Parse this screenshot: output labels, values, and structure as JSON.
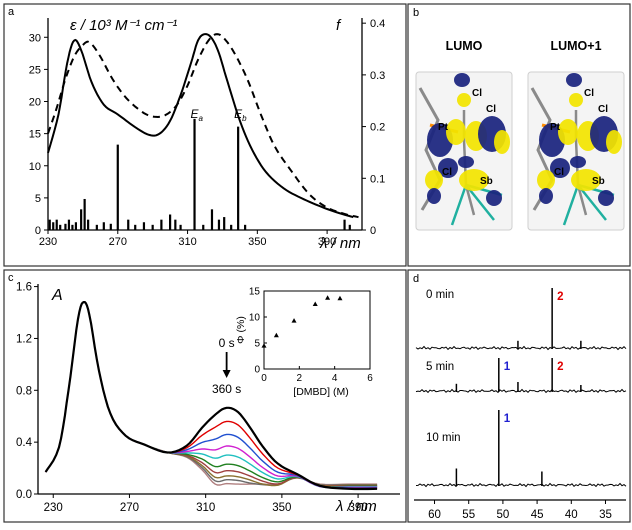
{
  "chart_data": [
    {
      "panel": "a",
      "type": "line",
      "ylabel": "ε / 10³ M⁻¹ cm⁻¹",
      "y2label": "f",
      "xlabel": "λ / nm",
      "xticks": [
        230,
        270,
        310,
        350,
        390
      ],
      "yticks": [
        0,
        5,
        10,
        15,
        20,
        25,
        30
      ],
      "y2ticks": [
        0,
        0.1,
        0.2,
        0.3,
        0.4
      ],
      "xlim": [
        230,
        410
      ],
      "ylim": [
        0,
        33
      ],
      "y2lim": [
        0,
        0.41
      ],
      "series": [
        {
          "style": "solid",
          "points": [
            [
              230,
              12
            ],
            [
              236,
              18
            ],
            [
              241,
              26
            ],
            [
              245,
              29.5
            ],
            [
              249,
              28
            ],
            [
              255,
              23
            ],
            [
              262,
              19.5
            ],
            [
              270,
              18
            ],
            [
              280,
              16
            ],
            [
              288,
              14.8
            ],
            [
              294,
              15
            ],
            [
              300,
              17
            ],
            [
              306,
              21
            ],
            [
              312,
              26
            ],
            [
              316,
              29.5
            ],
            [
              320,
              30.5
            ],
            [
              324,
              29.8
            ],
            [
              328,
              27.5
            ],
            [
              333,
              23
            ],
            [
              340,
              17
            ],
            [
              347,
              12.5
            ],
            [
              355,
              9
            ],
            [
              365,
              6.5
            ],
            [
              375,
              5
            ],
            [
              385,
              3.8
            ],
            [
              395,
              2.8
            ],
            [
              405,
              2
            ]
          ]
        },
        {
          "style": "dashed",
          "points": [
            [
              230,
              15
            ],
            [
              235,
              19
            ],
            [
              240,
              23.5
            ],
            [
              245,
              27
            ],
            [
              250,
              28.8
            ],
            [
              254,
              29.2
            ],
            [
              260,
              27
            ],
            [
              267,
              23.5
            ],
            [
              275,
              20.5
            ],
            [
              285,
              18.2
            ],
            [
              292,
              17.6
            ],
            [
              298,
              18
            ],
            [
              304,
              19.5
            ],
            [
              310,
              22.5
            ],
            [
              316,
              26.5
            ],
            [
              322,
              29.5
            ],
            [
              327,
              30.5
            ],
            [
              332,
              29.5
            ],
            [
              338,
              27
            ],
            [
              345,
              23
            ],
            [
              352,
              18
            ],
            [
              360,
              13
            ],
            [
              370,
              9
            ],
            [
              380,
              5.5
            ],
            [
              390,
              3.5
            ],
            [
              400,
              2.5
            ],
            [
              408,
              2
            ]
          ]
        }
      ],
      "oscillator_strengths": [
        [
          231,
          0.02
        ],
        [
          233,
          0.015
        ],
        [
          235,
          0.02
        ],
        [
          237,
          0.01
        ],
        [
          240,
          0.012
        ],
        [
          242,
          0.02
        ],
        [
          244,
          0.01
        ],
        [
          246,
          0.015
        ],
        [
          249,
          0.04
        ],
        [
          251,
          0.06
        ],
        [
          253,
          0.02
        ],
        [
          258,
          0.01
        ],
        [
          262,
          0.015
        ],
        [
          266,
          0.012
        ],
        [
          270,
          0.165
        ],
        [
          276,
          0.02
        ],
        [
          280,
          0.01
        ],
        [
          285,
          0.015
        ],
        [
          290,
          0.01
        ],
        [
          295,
          0.02
        ],
        [
          300,
          0.03
        ],
        [
          303,
          0.02
        ],
        [
          306,
          0.01
        ],
        [
          314,
          0.215
        ],
        [
          319,
          0.01
        ],
        [
          324,
          0.04
        ],
        [
          328,
          0.02
        ],
        [
          331,
          0.025
        ],
        [
          335,
          0.01
        ],
        [
          339,
          0.2
        ],
        [
          343,
          0.01
        ],
        [
          400,
          0.02
        ],
        [
          403,
          0.01
        ]
      ],
      "annotations": [
        {
          "text": "E",
          "sub": "a",
          "x": 314
        },
        {
          "text": "E",
          "sub": "b",
          "x": 339
        }
      ]
    },
    {
      "panel": "c",
      "type": "line",
      "ylabel": "A",
      "xlabel": "λ / nm",
      "xticks": [
        230,
        270,
        310,
        350,
        390
      ],
      "yticks": [
        0.0,
        0.4,
        0.8,
        1.2,
        1.6
      ],
      "xlim": [
        222,
        412
      ],
      "ylim": [
        0,
        1.62
      ],
      "time_labels": [
        "0 s",
        "360 s"
      ],
      "series": [
        {
          "color": "#000000",
          "peak": 0.665
        },
        {
          "color": "#e00000",
          "peak": 0.56
        },
        {
          "color": "#2050d0",
          "peak": 0.46
        },
        {
          "color": "#d020d0",
          "peak": 0.37
        },
        {
          "color": "#20c0c0",
          "peak": 0.3
        },
        {
          "color": "#208020",
          "peak": 0.23
        },
        {
          "color": "#a04040",
          "peak": 0.18
        },
        {
          "color": "#8a7030",
          "peak": 0.14
        },
        {
          "color": "#6a6a6a",
          "peak": 0.11
        },
        {
          "color": "#b08080",
          "peak": 0.08
        }
      ],
      "inset": {
        "type": "scatter",
        "ylabel": "Φ (%)",
        "xlabel": "[DMBD] (M)",
        "xticks": [
          0,
          2,
          4,
          6
        ],
        "yticks": [
          0,
          5,
          10,
          15
        ],
        "xlim": [
          0,
          6
        ],
        "ylim": [
          0,
          15
        ],
        "points": [
          [
            0,
            4.5
          ],
          [
            0.7,
            6.5
          ],
          [
            1.7,
            9.3
          ],
          [
            2.9,
            12.5
          ],
          [
            3.6,
            13.7
          ],
          [
            4.3,
            13.6
          ]
        ]
      }
    },
    {
      "panel": "d",
      "type": "line",
      "xticks": [
        60,
        55,
        50,
        45,
        40,
        35
      ],
      "xlim": [
        63,
        32
      ],
      "traces": [
        {
          "label": "0 min",
          "peaks": [
            [
              47.8,
              0.12
            ],
            [
              42.8,
              1.0
            ],
            [
              38.6,
              0.12
            ]
          ],
          "peak_labels": [
            {
              "text": "2",
              "x": 42.8,
              "color": "#e00000"
            }
          ]
        },
        {
          "label": "5 min",
          "peaks": [
            [
              56.8,
              0.12
            ],
            [
              50.6,
              0.55
            ],
            [
              47.8,
              0.15
            ],
            [
              42.8,
              0.55
            ],
            [
              38.6,
              0.1
            ]
          ],
          "peak_labels": [
            {
              "text": "1",
              "x": 50.6,
              "color": "#2020d0"
            },
            {
              "text": "2",
              "x": 42.8,
              "color": "#e00000"
            }
          ]
        },
        {
          "label": "10 min",
          "peaks": [
            [
              56.8,
              0.22
            ],
            [
              50.6,
              1.0
            ],
            [
              44.3,
              0.18
            ]
          ],
          "peak_labels": [
            {
              "text": "1",
              "x": 50.6,
              "color": "#2020d0"
            }
          ]
        }
      ]
    }
  ],
  "panel_b": {
    "letter": "b",
    "orbitals": [
      {
        "title": "LUMO",
        "labels": [
          "Cl",
          "Pt",
          "Cl",
          "Cl",
          "Sb"
        ]
      },
      {
        "title": "LUMO+1",
        "labels": [
          "Cl",
          "Pt",
          "Cl",
          "Cl",
          "Sb"
        ]
      }
    ]
  },
  "colors": {
    "orbital_blue": "#1a237e",
    "orbital_yellow": "#f2e400",
    "frame": "#333333"
  }
}
